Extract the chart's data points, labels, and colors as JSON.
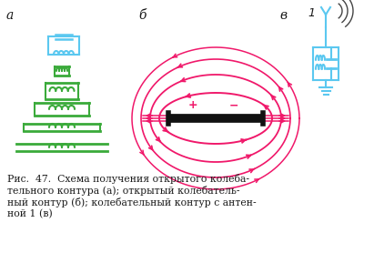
{
  "fig_width": 4.11,
  "fig_height": 2.78,
  "dpi": 100,
  "bg_color": "#ffffff",
  "blue_color": "#5bc8f0",
  "green_color": "#3aaa3a",
  "pink_color": "#f0186a",
  "black_color": "#1a1a1a",
  "caption_line1": "Рис.  47.  Схема получения открытого колеба-",
  "caption_line2": "тельного контура (а); открытый колебатель-",
  "caption_line3": "ный контур (б); колебательный контур с антен-",
  "caption_line4": "ной 1 (в)",
  "label_a": "а",
  "label_b": "б",
  "label_v": "в"
}
